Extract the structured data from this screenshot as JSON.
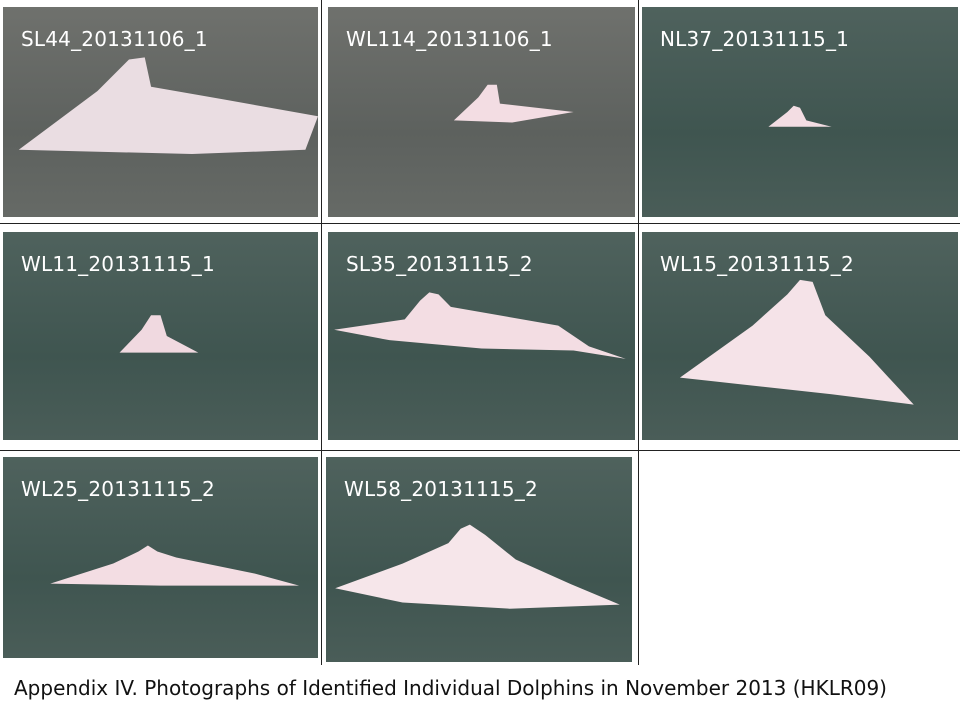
{
  "photos": [
    {
      "label": "SL44_20131106_1"
    },
    {
      "label": "WL114_20131106_1"
    },
    {
      "label": "NL37_20131115_1"
    },
    {
      "label": "WL11_20131115_1"
    },
    {
      "label": "SL35_20131115_2"
    },
    {
      "label": "WL15_20131115_2"
    },
    {
      "label": "WL25_20131115_2"
    },
    {
      "label": "WL58_20131115_2"
    }
  ],
  "caption": "Appendix IV. Photographs of Identified Individual Dolphins in November 2013 (HKLR09)",
  "colors": {
    "dolphin": "#f3dde3",
    "water_gray": "#676a66",
    "water_teal": "#465a55"
  }
}
